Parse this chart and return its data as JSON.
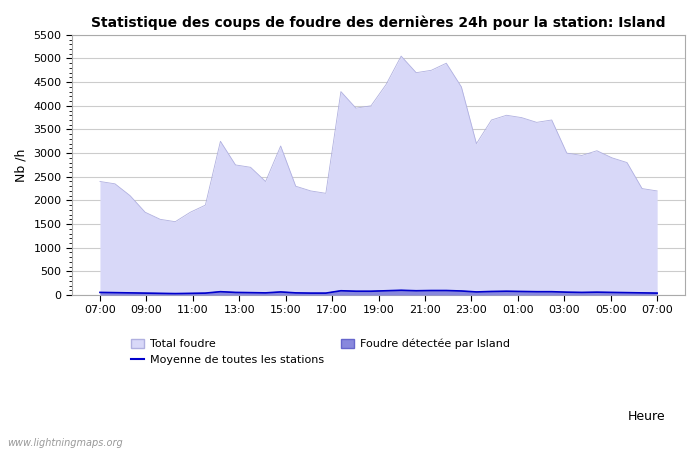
{
  "title": "Statistique des coups de foudre des dernières 24h pour la station: Island",
  "ylabel": "Nb /h",
  "xlabel": "Heure",
  "ylim": [
    0,
    5500
  ],
  "yticks": [
    0,
    500,
    1000,
    1500,
    2000,
    2500,
    3000,
    3500,
    4000,
    4500,
    5000,
    5500
  ],
  "xtick_labels": [
    "07:00",
    "09:00",
    "11:00",
    "13:00",
    "15:00",
    "17:00",
    "19:00",
    "21:00",
    "23:00",
    "01:00",
    "03:00",
    "05:00",
    "07:00"
  ],
  "watermark": "www.lightningmaps.org",
  "bg_color": "#ffffff",
  "plot_bg_color": "#ffffff",
  "grid_color": "#cccccc",
  "total_foudre_color": "#d8d8f8",
  "total_foudre_edge": "#b0b0e0",
  "island_foudre_color": "#8888dd",
  "island_foudre_edge": "#6666cc",
  "moyenne_color": "#0000cc",
  "legend_total_label": "Total foudre",
  "legend_island_label": "Foudre détectée par Island",
  "legend_moyenne_label": "Moyenne de toutes les stations",
  "total_foudre_values": [
    2400,
    2350,
    2100,
    1750,
    1600,
    1550,
    1750,
    1900,
    3250,
    2750,
    2700,
    2400,
    3150,
    2300,
    2200,
    2150,
    4300,
    3950,
    4000,
    4450,
    5050,
    4700,
    4750,
    4900,
    4400,
    3200,
    3700,
    3800,
    3750,
    3650,
    3700,
    3000,
    2950,
    3050,
    2900,
    2800,
    2250,
    2200
  ],
  "island_foudre_values": [
    55,
    50,
    45,
    40,
    35,
    30,
    35,
    40,
    70,
    55,
    50,
    45,
    65,
    45,
    40,
    40,
    90,
    80,
    80,
    90,
    100,
    90,
    95,
    95,
    85,
    65,
    75,
    80,
    75,
    70,
    70,
    60,
    55,
    60,
    55,
    50,
    45,
    40
  ],
  "moyenne_values": [
    55,
    50,
    45,
    40,
    35,
    30,
    35,
    40,
    70,
    55,
    50,
    45,
    65,
    45,
    40,
    40,
    90,
    80,
    80,
    90,
    100,
    90,
    95,
    95,
    85,
    65,
    75,
    80,
    75,
    70,
    70,
    60,
    55,
    60,
    55,
    50,
    45,
    40
  ]
}
